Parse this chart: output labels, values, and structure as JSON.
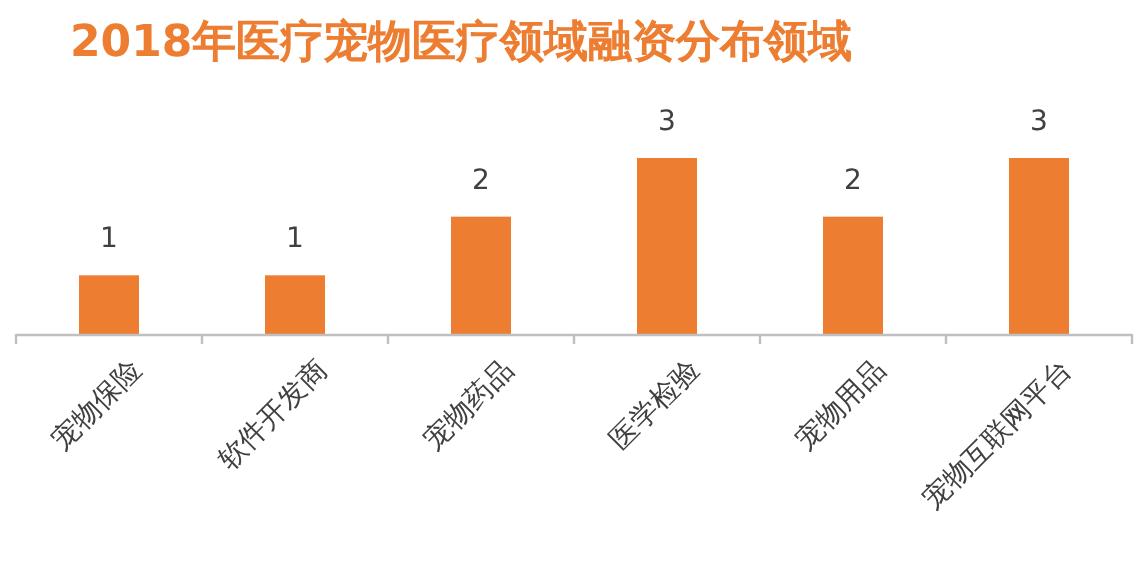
{
  "chart_data": {
    "type": "bar",
    "title": "2018年医疗宠物医疗领域融资分布领域",
    "categories": [
      "宠物保险",
      "软件开发商",
      "宠物药品",
      "医学检验",
      "宠物用品",
      "宠物互联网平台"
    ],
    "values": [
      1,
      1,
      2,
      3,
      2,
      3
    ],
    "color": "#ed7d31",
    "data_labels": true
  }
}
